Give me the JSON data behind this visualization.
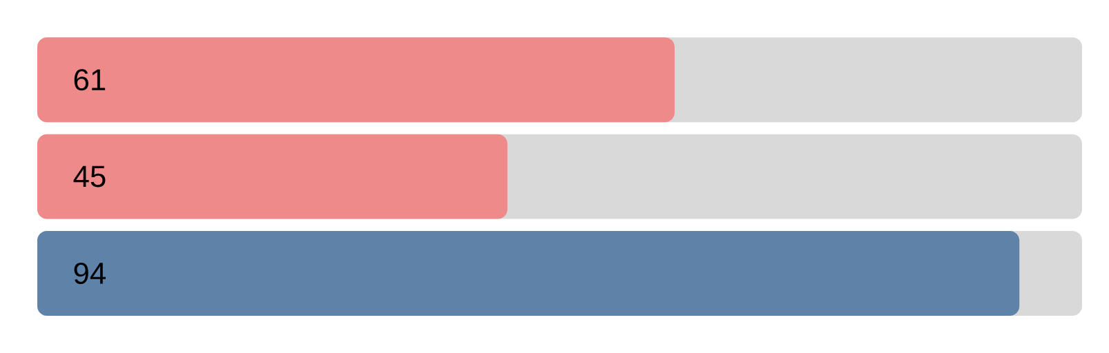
{
  "chart_data": {
    "type": "bar",
    "orientation": "horizontal",
    "categories": [
      null,
      null,
      null
    ],
    "values": [
      61,
      45,
      94
    ],
    "colors": [
      "#ee8a89",
      "#ee8a89",
      "#5f82a8"
    ],
    "xlim": [
      0,
      100
    ],
    "data_labels": true
  }
}
